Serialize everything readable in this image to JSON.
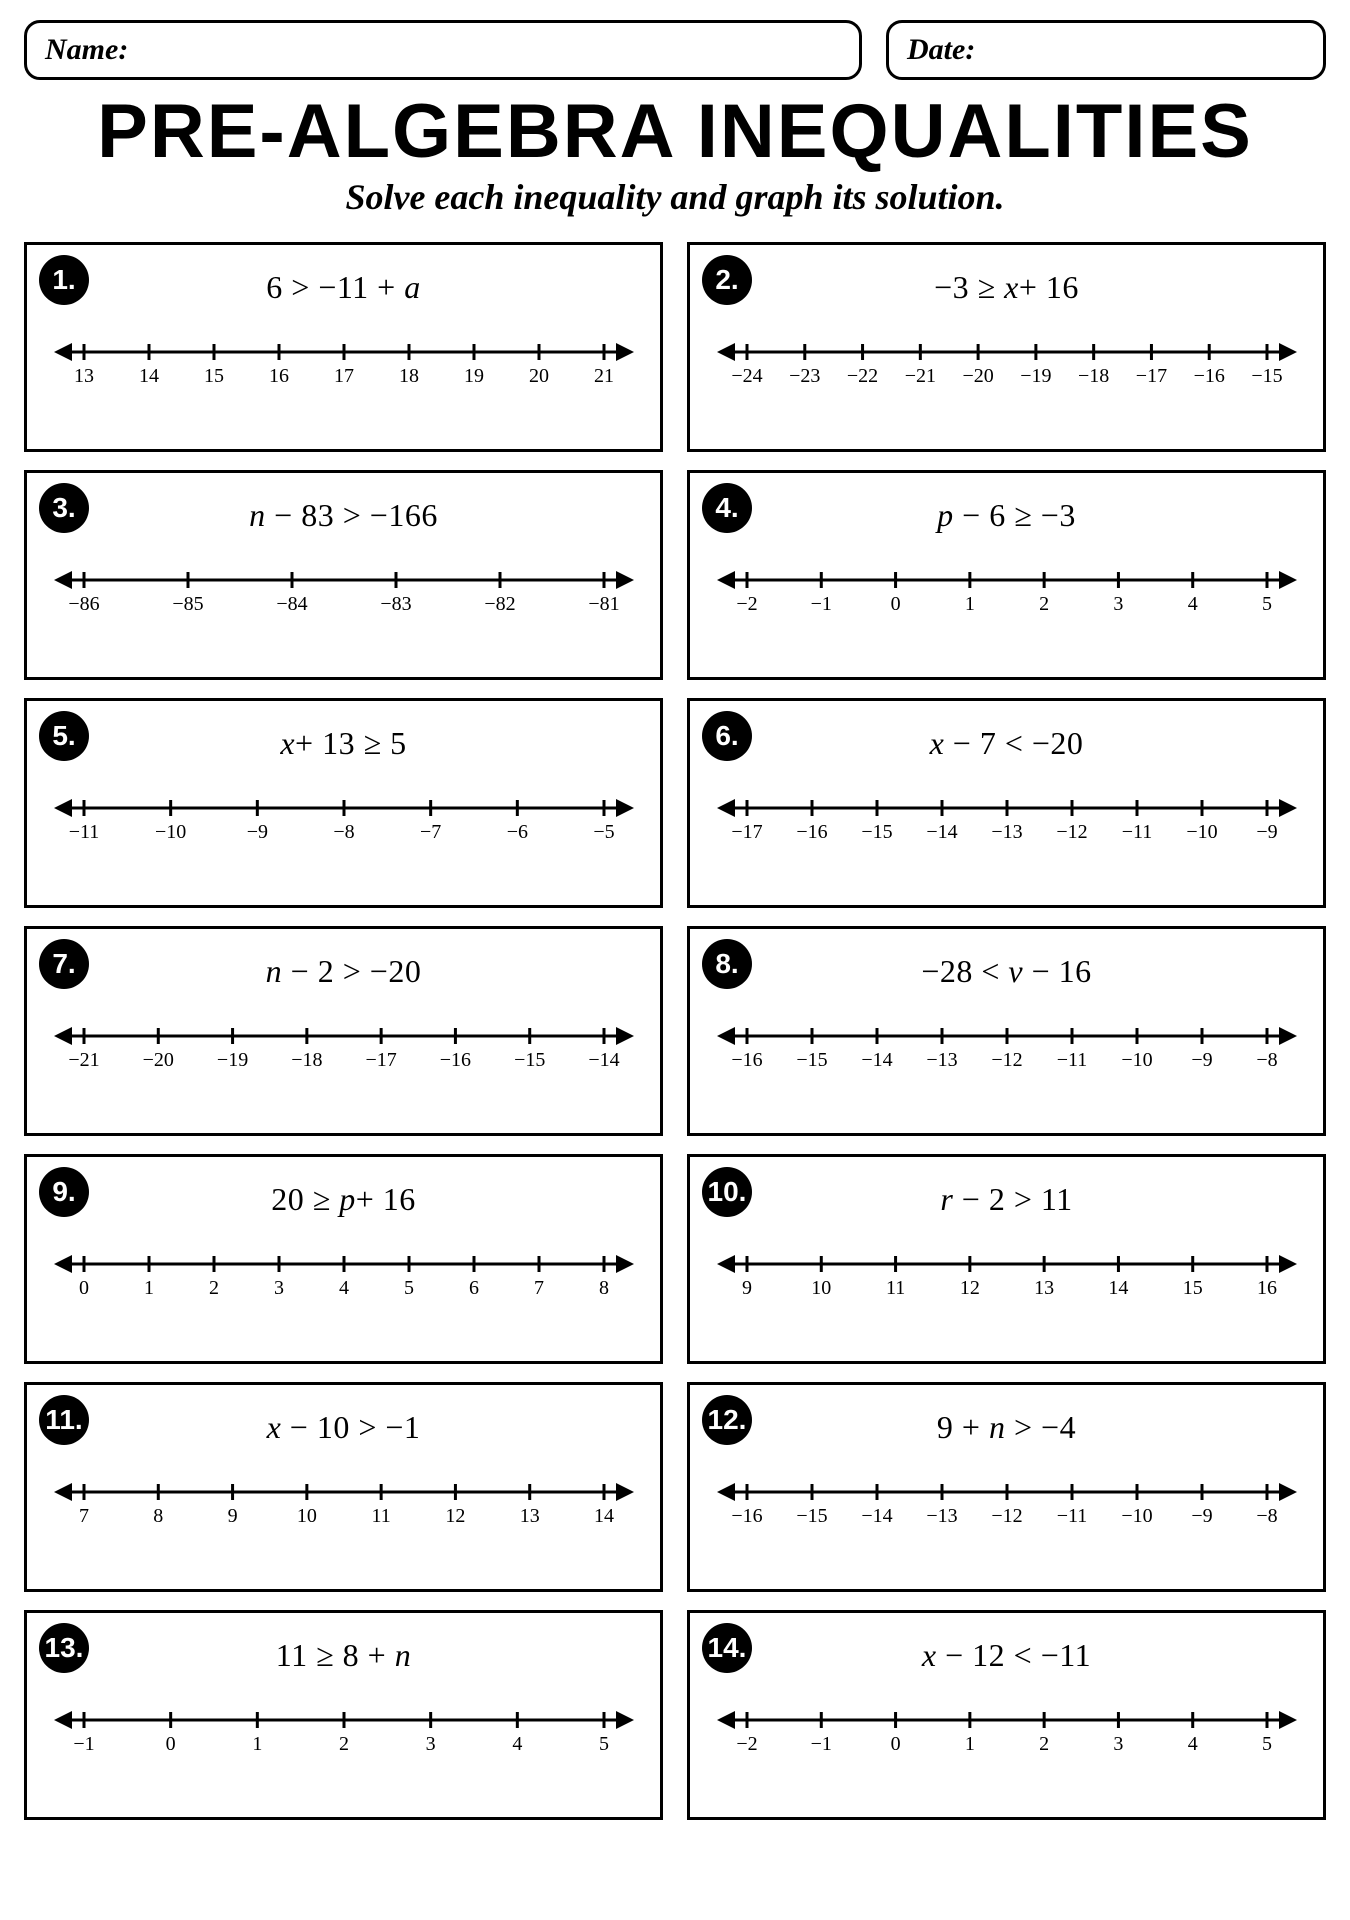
{
  "header": {
    "name_label": "Name:",
    "date_label": "Date:",
    "title": "PRE-ALGEBRA INEQUALITIES",
    "subtitle": "Solve each inequality and graph its solution."
  },
  "style": {
    "border_color": "#000000",
    "badge_bg": "#000000",
    "badge_fg": "#ffffff",
    "nline": {
      "inner_width": 520,
      "height": 70,
      "margin": 36,
      "tick_h": 16,
      "stroke_w": 3,
      "label_fs": 20
    }
  },
  "problems": [
    {
      "n": "1.",
      "expr": "6 > −11 + <i>a</i>",
      "ticks": [
        "13",
        "14",
        "15",
        "16",
        "17",
        "18",
        "19",
        "20",
        "21"
      ]
    },
    {
      "n": "2.",
      "expr": "−3 ≥ <i>x</i>+  16",
      "ticks": [
        "−24",
        "−23",
        "−22",
        "−21",
        "−20",
        "−19",
        "−18",
        "−17",
        "−16",
        "−15"
      ]
    },
    {
      "n": "3.",
      "expr": "<i>n</i> − 83 > −166",
      "ticks": [
        "−86",
        "−85",
        "−84",
        "−83",
        "−82",
        "−81"
      ]
    },
    {
      "n": "4.",
      "expr": "<i>p</i> − 6 ≥ −3",
      "ticks": [
        "−2",
        "−1",
        "0",
        "1",
        "2",
        "3",
        "4",
        "5"
      ]
    },
    {
      "n": "5.",
      "expr": "<i>x</i>+  13 ≥ 5",
      "ticks": [
        "−11",
        "−10",
        "−9",
        "−8",
        "−7",
        "−6",
        "−5"
      ]
    },
    {
      "n": "6.",
      "expr": "<i>x</i> − 7 < −20",
      "ticks": [
        "−17",
        "−16",
        "−15",
        "−14",
        "−13",
        "−12",
        "−11",
        "−10",
        "−9"
      ]
    },
    {
      "n": "7.",
      "expr": "<i>n</i> − 2 > −20",
      "ticks": [
        "−21",
        "−20",
        "−19",
        "−18",
        "−17",
        "−16",
        "−15",
        "−14"
      ]
    },
    {
      "n": "8.",
      "expr": "−28 < <i>v</i> − 16",
      "ticks": [
        "−16",
        "−15",
        "−14",
        "−13",
        "−12",
        "−11",
        "−10",
        "−9",
        "−8"
      ]
    },
    {
      "n": "9.",
      "expr": "20 ≥ <i>p</i>+  16",
      "ticks": [
        "0",
        "1",
        "2",
        "3",
        "4",
        "5",
        "6",
        "7",
        "8"
      ]
    },
    {
      "n": "10.",
      "expr": "<i>r</i> − 2 > 11",
      "ticks": [
        "9",
        "10",
        "11",
        "12",
        "13",
        "14",
        "15",
        "16"
      ]
    },
    {
      "n": "11.",
      "expr": "<i>x</i> − 10 > −1",
      "ticks": [
        "7",
        "8",
        "9",
        "10",
        "11",
        "12",
        "13",
        "14"
      ]
    },
    {
      "n": "12.",
      "expr": "9 + <i>n</i> > −4",
      "ticks": [
        "−16",
        "−15",
        "−14",
        "−13",
        "−12",
        "−11",
        "−10",
        "−9",
        "−8"
      ]
    },
    {
      "n": "13.",
      "expr": "11 ≥ 8 + <i>n</i>",
      "ticks": [
        "−1",
        "0",
        "1",
        "2",
        "3",
        "4",
        "5"
      ]
    },
    {
      "n": "14.",
      "expr": "<i>x</i> − 12 < −11",
      "ticks": [
        "−2",
        "−1",
        "0",
        "1",
        "2",
        "3",
        "4",
        "5"
      ]
    }
  ]
}
